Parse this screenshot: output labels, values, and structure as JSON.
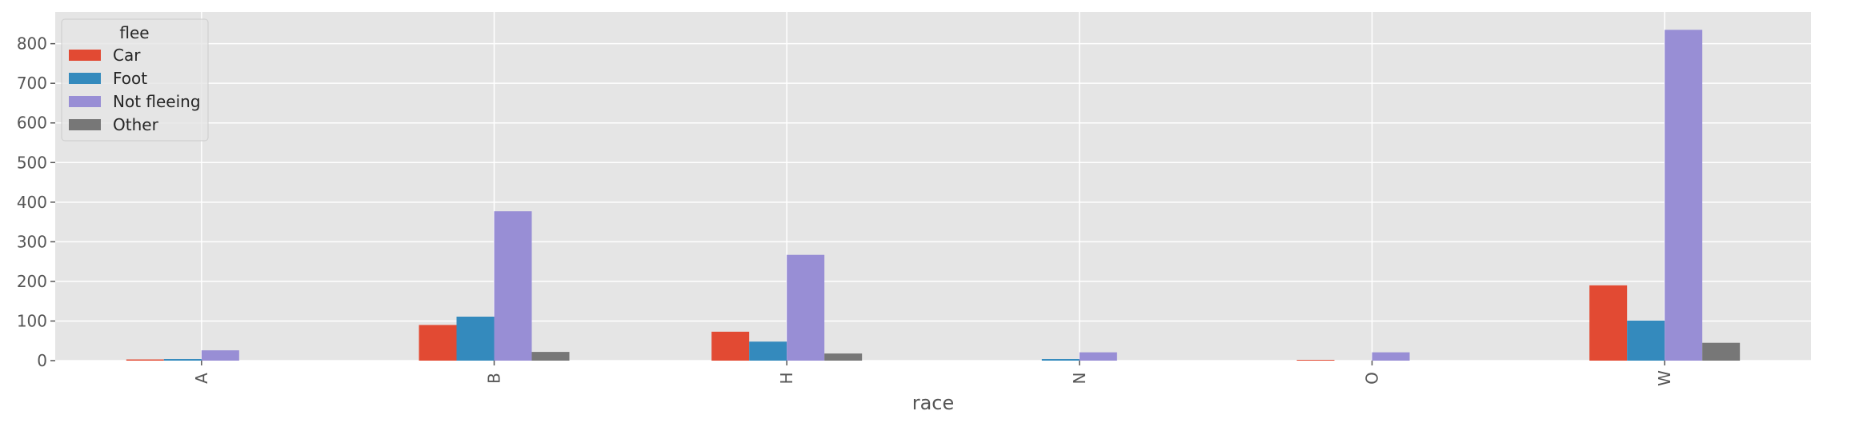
{
  "chart_data": {
    "type": "bar",
    "xlabel": "race",
    "ylabel": "",
    "categories": [
      "A",
      "B",
      "H",
      "N",
      "O",
      "W"
    ],
    "ylim": [
      0,
      880
    ],
    "yticks": [
      0,
      100,
      200,
      300,
      400,
      500,
      600,
      700,
      800
    ],
    "grid": true,
    "legend": {
      "title": "flee",
      "placement": "top-left"
    },
    "series": [
      {
        "name": "Car",
        "color": "#E24A33",
        "values": [
          3,
          90,
          73,
          0,
          2,
          190
        ]
      },
      {
        "name": "Foot",
        "color": "#348ABD",
        "values": [
          4,
          111,
          48,
          4,
          0,
          101
        ]
      },
      {
        "name": "Not fleeing",
        "color": "#988ED5",
        "values": [
          26,
          377,
          267,
          21,
          21,
          835
        ]
      },
      {
        "name": "Other",
        "color": "#777777",
        "values": [
          0,
          22,
          18,
          0,
          0,
          45
        ]
      }
    ]
  }
}
